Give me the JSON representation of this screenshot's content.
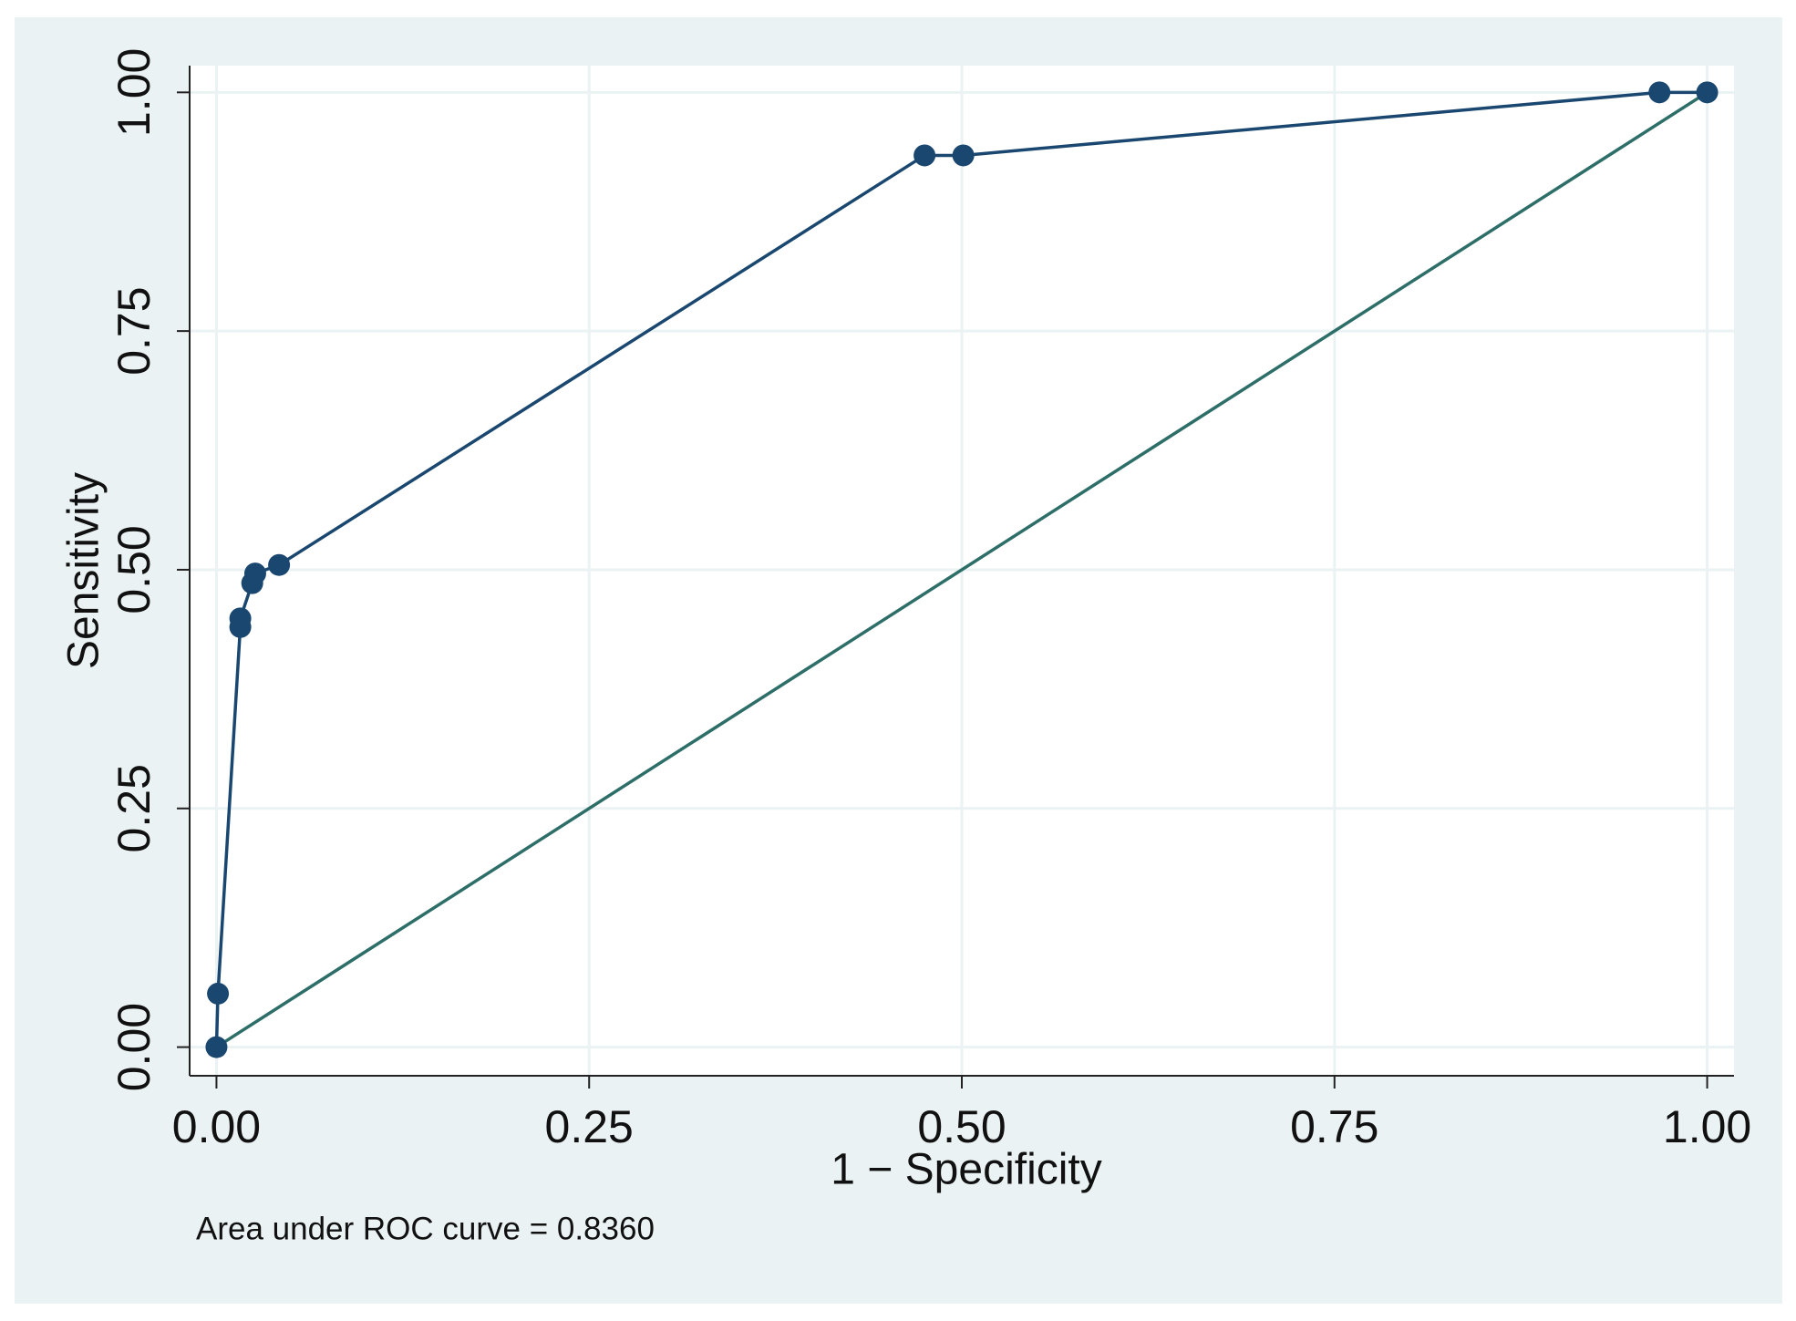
{
  "chart_data": {
    "type": "line",
    "x_label": "1 − Specificity",
    "y_label": "Sensitivity",
    "note": "Area under ROC curve = 0.8360",
    "xlim": [
      -0.018,
      1.018
    ],
    "ylim": [
      -0.03,
      1.028
    ],
    "xticks": [
      {
        "value": 0,
        "label": "0.00"
      },
      {
        "value": 0.25,
        "label": "0.25"
      },
      {
        "value": 0.5,
        "label": "0.50"
      },
      {
        "value": 0.75,
        "label": "0.75"
      },
      {
        "value": 1,
        "label": "1.00"
      }
    ],
    "yticks": [
      {
        "value": 0,
        "label": "0.00"
      },
      {
        "value": 0.25,
        "label": "0.25"
      },
      {
        "value": 0.5,
        "label": "0.50"
      },
      {
        "value": 0.75,
        "label": "0.75"
      },
      {
        "value": 1,
        "label": "1.00"
      }
    ],
    "grid": true,
    "series": [
      {
        "color": "#1a476f",
        "markers": true,
        "x": [
          0,
          0.001,
          0.016,
          0.016,
          0.024,
          0.026,
          0.042,
          0.475,
          0.501,
          0.968,
          1.0
        ],
        "y": [
          0,
          0.056,
          0.44,
          0.449,
          0.486,
          0.496,
          0.505,
          0.934,
          0.934,
          1.0,
          1.0
        ]
      },
      {
        "color": "#2e6e68",
        "markers": false,
        "x": [
          0,
          1
        ],
        "y": [
          0,
          1
        ]
      }
    ]
  }
}
